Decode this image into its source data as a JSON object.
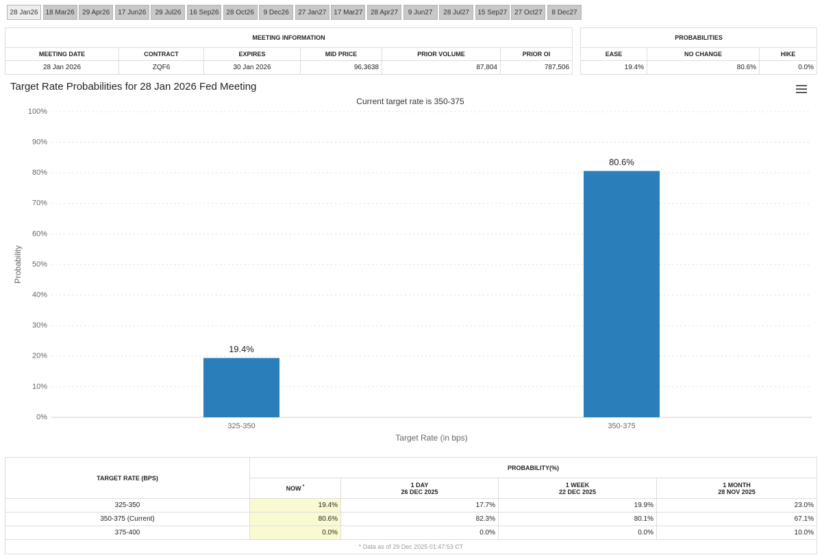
{
  "tabs": [
    "28 Jan26",
    "18 Mar26",
    "29 Apr26",
    "17 Jun26",
    "29 Jul26",
    "16 Sep26",
    "28 Oct26",
    "9 Dec26",
    "27 Jan27",
    "17 Mar27",
    "28 Apr27",
    "9 Jun27",
    "28 Jul27",
    "15 Sep27",
    "27 Oct27",
    "8 Dec27"
  ],
  "meeting_information": {
    "title": "MEETING INFORMATION",
    "headers": [
      "MEETING DATE",
      "CONTRACT",
      "EXPIRES",
      "MID PRICE",
      "PRIOR VOLUME",
      "PRIOR OI"
    ],
    "row": [
      "28 Jan 2026",
      "ZQF6",
      "30 Jan 2026",
      "96.3638",
      "87,804",
      "787,506"
    ]
  },
  "probabilities": {
    "title": "PROBABILITIES",
    "headers": [
      "EASE",
      "NO CHANGE",
      "HIKE"
    ],
    "row": [
      "19.4%",
      "80.6%",
      "0.0%"
    ]
  },
  "chart_data": {
    "type": "bar",
    "title": "Target Rate Probabilities for 28 Jan 2026 Fed Meeting",
    "subtitle": "Current target rate is 350-375",
    "y_label": "Probability",
    "x_label": "Target Rate (in bps)",
    "categories": [
      "325-350",
      "350-375"
    ],
    "values": [
      19.4,
      80.6
    ],
    "value_labels": [
      "19.4%",
      "80.6%"
    ],
    "color": "#2a7fba",
    "ylim": [
      0,
      100
    ],
    "yticks": [
      {
        "value": 0,
        "label": "0%"
      },
      {
        "value": 10,
        "label": "10%"
      },
      {
        "value": 20,
        "label": "20%"
      },
      {
        "value": 30,
        "label": "30%"
      },
      {
        "value": 40,
        "label": "40%"
      },
      {
        "value": 50,
        "label": "50%"
      },
      {
        "value": 60,
        "label": "60%"
      },
      {
        "value": 70,
        "label": "70%"
      },
      {
        "value": 80,
        "label": "80%"
      },
      {
        "value": 90,
        "label": "90%"
      },
      {
        "value": 100,
        "label": "100%"
      }
    ],
    "grid": true
  },
  "probability_table": {
    "row_header": "TARGET RATE (BPS)",
    "title": "PROBABILITY(%)",
    "columns": [
      {
        "label": "NOW",
        "note": "*"
      },
      {
        "label": "1 DAY",
        "date": "26 DEC 2025"
      },
      {
        "label": "1 WEEK",
        "date": "22 DEC 2025"
      },
      {
        "label": "1 MONTH",
        "date": "28 NOV 2025"
      }
    ],
    "rows": [
      [
        "325-350",
        "19.4%",
        "17.7%",
        "19.9%",
        "23.0%"
      ],
      [
        "350-375 (Current)",
        "80.6%",
        "82.3%",
        "80.1%",
        "67.1%"
      ],
      [
        "375-400",
        "0.0%",
        "0.0%",
        "0.0%",
        "10.0%"
      ]
    ],
    "footnote": "* Data as of 29 Dec 2025 01:47:53 CT"
  }
}
